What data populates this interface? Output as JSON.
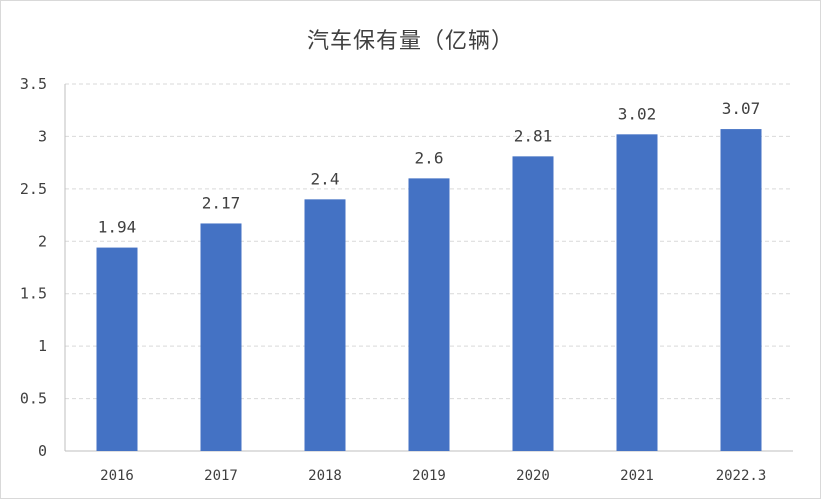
{
  "chart_data": {
    "type": "bar",
    "title": "汽车保有量（亿辆）",
    "categories": [
      "2016",
      "2017",
      "2018",
      "2019",
      "2020",
      "2021",
      "2022.3"
    ],
    "values": [
      1.94,
      2.17,
      2.4,
      2.6,
      2.81,
      3.02,
      3.07
    ],
    "value_labels": [
      "1.94",
      "2.17",
      "2.4",
      "2.6",
      "2.81",
      "3.02",
      "3.07"
    ],
    "ytick_labels": [
      "0",
      "0.5",
      "1",
      "1.5",
      "2",
      "2.5",
      "3",
      "3.5"
    ],
    "xlabel": "",
    "ylabel": "",
    "ylim": [
      0,
      3.5
    ],
    "grid": "horizontal-dashed",
    "legend": "none",
    "bar_color": "#4472C4",
    "grid_color": "#d9d9d9",
    "axis_color": "#bfbfbf"
  }
}
